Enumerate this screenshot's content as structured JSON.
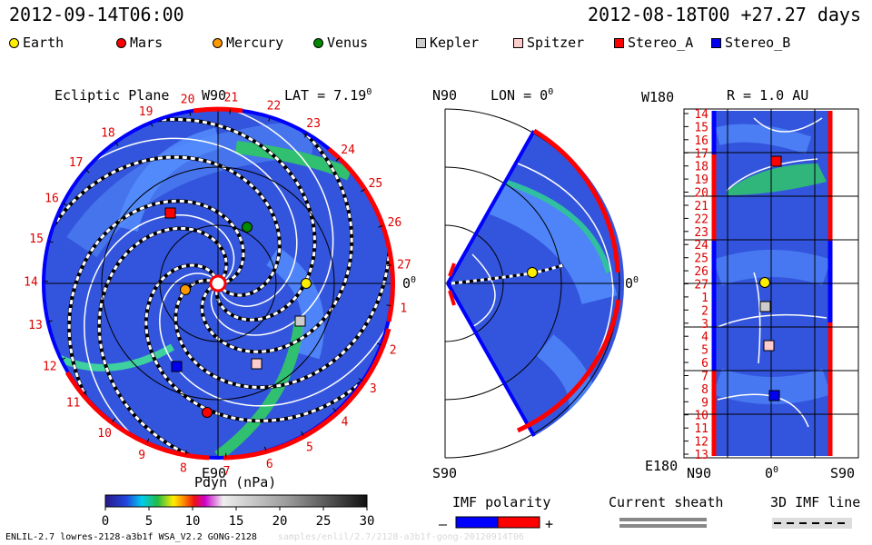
{
  "header": {
    "timestamp_left": "2012-09-14T06:00",
    "timestamp_right": "2012-08-18T00 +27.27 days"
  },
  "legend": [
    {
      "label": "Earth",
      "color": "#ffee00",
      "shape": "circle"
    },
    {
      "label": "Mars",
      "color": "#ff0000",
      "shape": "circle"
    },
    {
      "label": "Mercury",
      "color": "#ff9900",
      "shape": "circle"
    },
    {
      "label": "Venus",
      "color": "#008800",
      "shape": "circle"
    },
    {
      "label": "Kepler",
      "color": "#cccccc",
      "shape": "square"
    },
    {
      "label": "Spitzer",
      "color": "#ffcccc",
      "shape": "square"
    },
    {
      "label": "Stereo_A",
      "color": "#ff0000",
      "shape": "square"
    },
    {
      "label": "Stereo_B",
      "color": "#0000ee",
      "shape": "square"
    }
  ],
  "ecliptic": {
    "title": "Ecliptic Plane",
    "lat": "LAT = 7.19",
    "lat_sup": "0",
    "top_label": "W90",
    "bottom_label": "E90",
    "right_label": "0",
    "right_sup": "0",
    "ticks": [
      "1",
      "2",
      "3",
      "4",
      "5",
      "6",
      "7",
      "8",
      "9",
      "10",
      "11",
      "12",
      "13",
      "14",
      "15",
      "16",
      "17",
      "18",
      "19",
      "20",
      "21",
      "22",
      "23",
      "24",
      "25",
      "26",
      "27"
    ]
  },
  "meridional": {
    "top_left": "N90",
    "lon": "LON = 0",
    "lon_sup": "0",
    "bottom_left": "S90",
    "right_label": "0",
    "right_sup": "0"
  },
  "radial": {
    "top_left": "W180",
    "title": "R = 1.0 AU",
    "bottom_left": "E180",
    "x_left": "N90",
    "x_mid": "0",
    "x_mid_sup": "0",
    "x_right": "S90",
    "y_ticks": [
      "14",
      "15",
      "16",
      "17",
      "18",
      "19",
      "20",
      "21",
      "22",
      "23",
      "24",
      "25",
      "26",
      "27",
      "1",
      "2",
      "3",
      "4",
      "5",
      "6",
      "7",
      "8",
      "9",
      "10",
      "11",
      "12",
      "13"
    ]
  },
  "colorbar": {
    "title": "Pdyn (nPa)",
    "ticks": [
      "0",
      "5",
      "10",
      "15",
      "20",
      "25",
      "30"
    ]
  },
  "imf": {
    "title": "IMF polarity",
    "minus": "–",
    "plus": "+",
    "neg_color": "#0000ff",
    "pos_color": "#ff0000"
  },
  "current_sheath": {
    "title": "Current sheath"
  },
  "imf_3d": {
    "title": "3D IMF line"
  },
  "footer": {
    "model_info": "ENLIL-2.7 lowres-2128-a3b1f WSA_V2.2 GONG-2128",
    "faint_path": "samples/enlil/2.7/2128-a3b1f-gong-20120914T06"
  }
}
